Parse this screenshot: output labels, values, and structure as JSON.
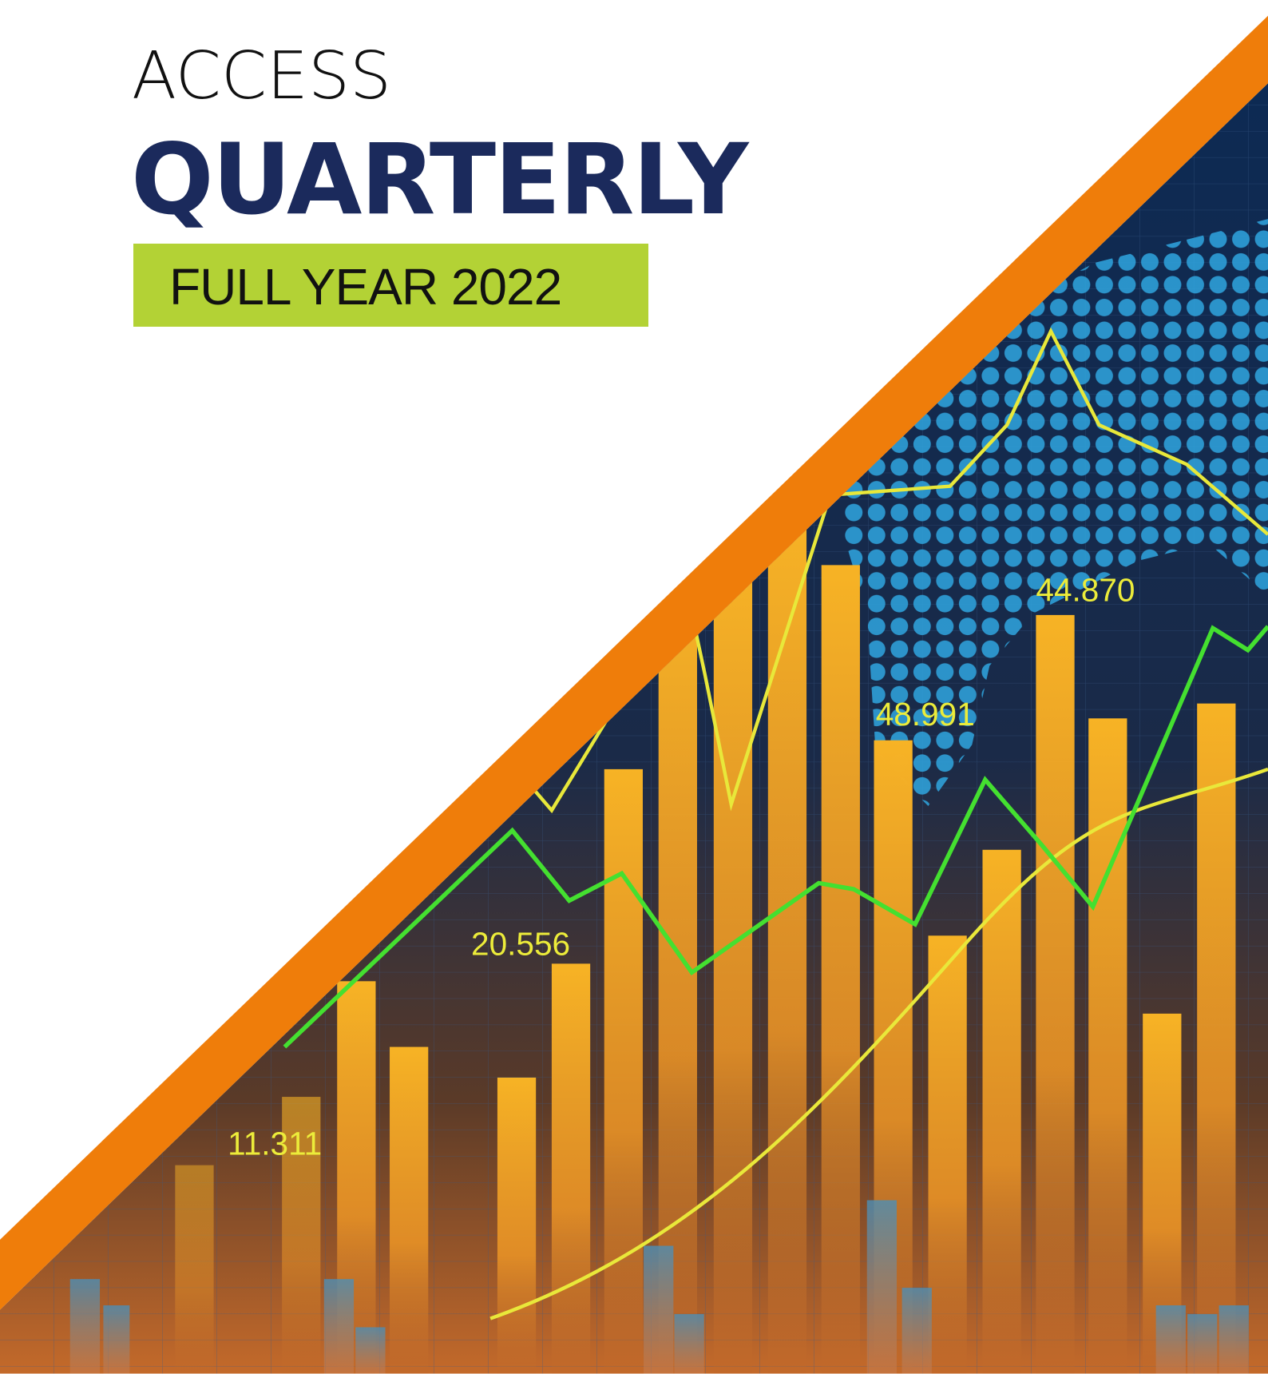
{
  "header": {
    "brand": "ACCESS",
    "title": "QUARTERLY",
    "period": "FULL YEAR 2022"
  },
  "figure_labels": [
    "11.311",
    "20.556",
    "48.991",
    "44.870"
  ]
}
